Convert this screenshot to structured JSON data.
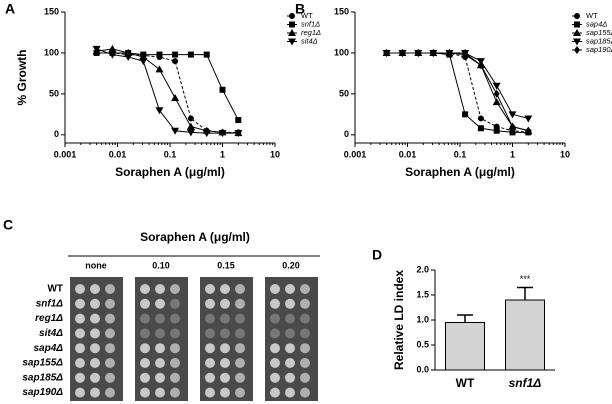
{
  "chart_data": [
    {
      "type": "line",
      "panel": "A",
      "xlabel": "Soraphen A (μg/ml)",
      "ylabel": "% Growth",
      "xscale": "log",
      "x": [
        0.004,
        0.008,
        0.016,
        0.031,
        0.063,
        0.125,
        0.25,
        0.5,
        1,
        2
      ],
      "xlim": [
        0.001,
        10
      ],
      "xticks": [
        0.001,
        0.01,
        0.1,
        1,
        10
      ],
      "ylim": [
        -10,
        150
      ],
      "yticks": [
        0,
        50,
        100,
        150
      ],
      "legend": "top-right",
      "series": [
        {
          "name": "WT",
          "color": "#000000",
          "marker": "circle",
          "dash": true,
          "values": [
            100,
            100,
            98,
            97,
            95,
            90,
            20,
            5,
            3,
            3
          ]
        },
        {
          "name": "snf1Δ",
          "color": "#000000",
          "marker": "square",
          "dash": false,
          "values": [
            100,
            100,
            100,
            98,
            98,
            98,
            98,
            98,
            55,
            18
          ]
        },
        {
          "name": "reg1Δ",
          "color": "#000000",
          "marker": "triangle-up",
          "dash": false,
          "values": [
            102,
            105,
            100,
            95,
            80,
            45,
            10,
            5,
            3,
            2
          ]
        },
        {
          "name": "sit4Δ",
          "color": "#000000",
          "marker": "triangle-down",
          "dash": false,
          "values": [
            105,
            98,
            95,
            90,
            30,
            5,
            3,
            2,
            2,
            2
          ]
        }
      ]
    },
    {
      "type": "line",
      "panel": "B",
      "xlabel": "Soraphen A (μg/ml)",
      "xscale": "log",
      "x": [
        0.004,
        0.008,
        0.016,
        0.031,
        0.063,
        0.125,
        0.25,
        0.5,
        1,
        2
      ],
      "xlim": [
        0.001,
        10
      ],
      "xticks": [
        0.001,
        0.01,
        0.1,
        1,
        10
      ],
      "ylim": [
        -10,
        150
      ],
      "yticks": [
        0,
        50,
        100,
        150
      ],
      "legend": "top-right",
      "series": [
        {
          "name": "WT",
          "color": "#000000",
          "marker": "circle",
          "dash": true,
          "values": [
            100,
            100,
            100,
            100,
            100,
            95,
            20,
            10,
            5,
            3
          ]
        },
        {
          "name": "sap4Δ",
          "color": "#000000",
          "marker": "square",
          "dash": false,
          "values": [
            100,
            100,
            100,
            100,
            98,
            25,
            8,
            5,
            3,
            3
          ]
        },
        {
          "name": "sap155Δ",
          "color": "#000000",
          "marker": "triangle-up",
          "dash": false,
          "values": [
            100,
            100,
            100,
            100,
            100,
            98,
            85,
            40,
            10,
            5
          ]
        },
        {
          "name": "sap185Δ",
          "color": "#000000",
          "marker": "triangle-down",
          "dash": false,
          "values": [
            100,
            100,
            100,
            100,
            100,
            100,
            90,
            60,
            25,
            20
          ]
        },
        {
          "name": "sap190Δ",
          "color": "#000000",
          "marker": "diamond",
          "dash": false,
          "values": [
            100,
            100,
            100,
            100,
            100,
            100,
            85,
            50,
            10,
            5
          ]
        }
      ]
    },
    {
      "type": "bar",
      "panel": "D",
      "ylabel": "Relative LD index",
      "categories": [
        "WT",
        "snf1Δ"
      ],
      "values": [
        0.95,
        1.4
      ],
      "errors": [
        0.15,
        0.25
      ],
      "color": "#d3d3d3",
      "annotation": "***",
      "ylim": [
        0,
        2
      ],
      "yticks": [
        {
          "value": 0,
          "label": "0.0"
        },
        {
          "value": 0.5,
          "label": "0.5"
        },
        {
          "value": 1,
          "label": "1.0"
        },
        {
          "value": 1.5,
          "label": "1.5"
        },
        {
          "value": 2,
          "label": "2.0"
        }
      ]
    }
  ],
  "panel_c": {
    "panel": "C",
    "title": "Soraphen A (μg/ml)",
    "columns": [
      "none",
      "0.10",
      "0.15",
      "0.20"
    ],
    "rows": [
      "WT",
      "snf1Δ",
      "reg1Δ",
      "sit4Δ",
      "sap4Δ",
      "sap155Δ",
      "sap185Δ",
      "sap190Δ"
    ]
  }
}
